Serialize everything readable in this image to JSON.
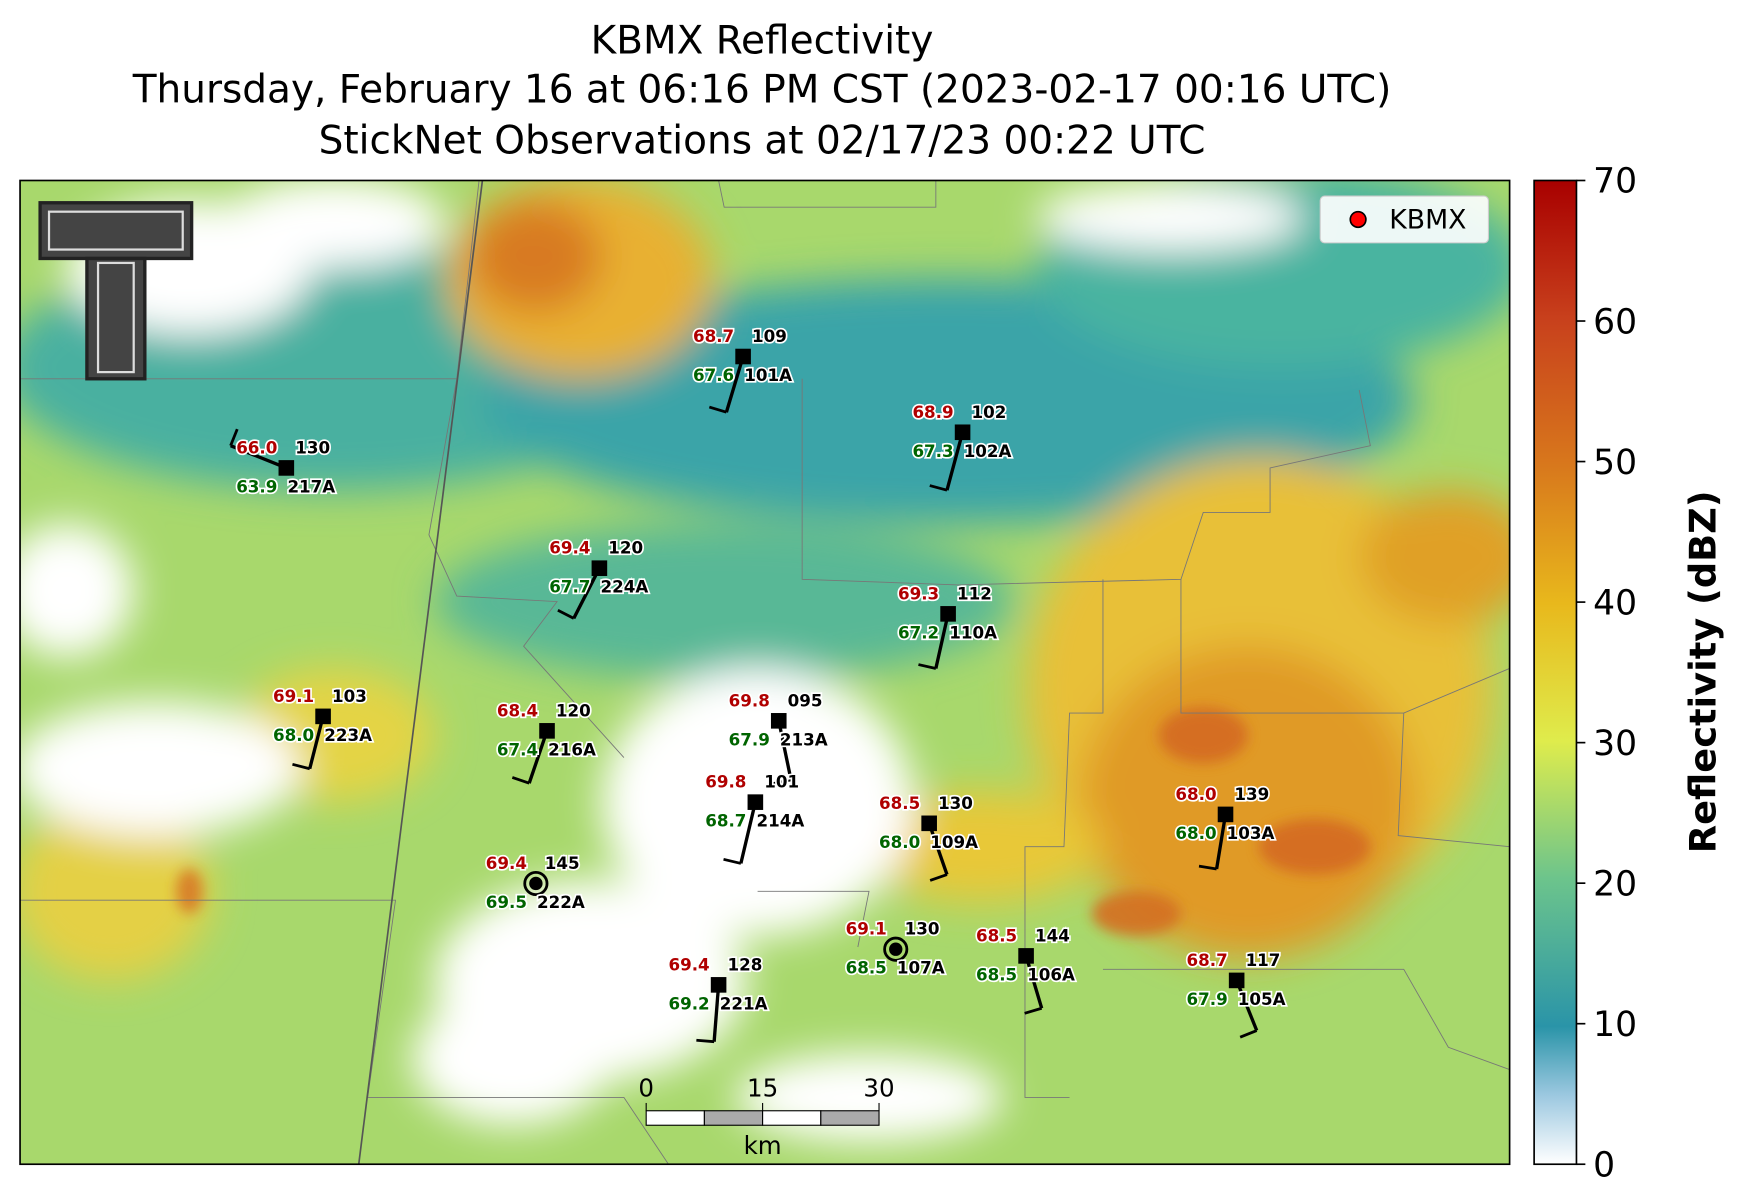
{
  "title": {
    "lines": [
      "KBMX Reflectivity",
      "Thursday, February 16 at 06:16 PM CST (2023-02-17 00:16 UTC)",
      "StickNet Observations at 02/17/23 00:22 UTC"
    ]
  },
  "colorbar": {
    "label": "Reflectivity (dBZ)",
    "lim": [
      0,
      70
    ],
    "ticks": [
      0,
      10,
      20,
      30,
      40,
      50,
      60,
      70
    ]
  },
  "legend": {
    "label": "KBMX"
  },
  "scalebar": {
    "ticks": [
      0,
      15,
      30
    ],
    "unit": "km"
  },
  "stations": [
    {
      "temperature": "68.7",
      "dewpoint": "67.6",
      "pressure": "109",
      "id": "101A"
    },
    {
      "temperature": "68.9",
      "dewpoint": "67.3",
      "pressure": "102",
      "id": "102A"
    },
    {
      "temperature": "66.0",
      "dewpoint": "63.9",
      "pressure": "130",
      "id": "217A"
    },
    {
      "temperature": "69.4",
      "dewpoint": "67.7",
      "pressure": "120",
      "id": "224A"
    },
    {
      "temperature": "69.3",
      "dewpoint": "67.2",
      "pressure": "112",
      "id": "110A"
    },
    {
      "temperature": "69.1",
      "dewpoint": "68.0",
      "pressure": "103",
      "id": "223A"
    },
    {
      "temperature": "68.4",
      "dewpoint": "67.4",
      "pressure": "120",
      "id": "216A"
    },
    {
      "temperature": "69.8",
      "dewpoint": "67.9",
      "pressure": "095",
      "id": "213A"
    },
    {
      "temperature": "69.8",
      "dewpoint": "68.7",
      "pressure": "101",
      "id": "214A"
    },
    {
      "temperature": "68.5",
      "dewpoint": "68.0",
      "pressure": "130",
      "id": "109A"
    },
    {
      "temperature": "68.0",
      "dewpoint": "68.0",
      "pressure": "139",
      "id": "103A"
    },
    {
      "temperature": "69.4",
      "dewpoint": "69.5",
      "pressure": "145",
      "id": "222A"
    },
    {
      "temperature": "69.1",
      "dewpoint": "68.5",
      "pressure": "130",
      "id": "107A"
    },
    {
      "temperature": "68.5",
      "dewpoint": "68.5",
      "pressure": "144",
      "id": "106A"
    },
    {
      "temperature": "69.4",
      "dewpoint": "69.2",
      "pressure": "128",
      "id": "221A"
    },
    {
      "temperature": "68.7",
      "dewpoint": "67.9",
      "pressure": "117",
      "id": "105A"
    }
  ]
}
